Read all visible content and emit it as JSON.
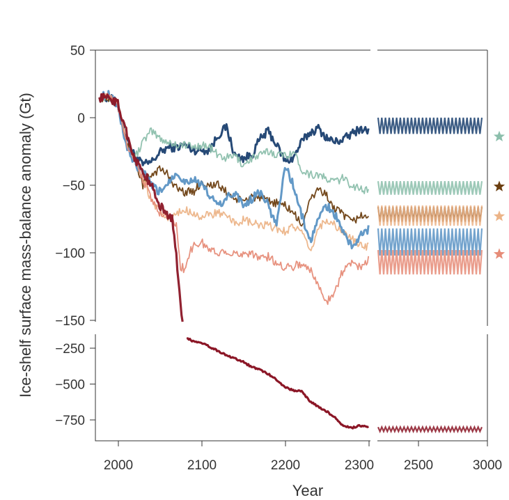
{
  "chart_data": {
    "type": "line",
    "xlabel": "Year",
    "ylabel": "Ice-shelf surface mass-balance anomaly (Gt)",
    "x_ticks_main": [
      2000,
      2100,
      2200,
      2300
    ],
    "x_ticks_extension": [
      2500,
      3000
    ],
    "y_ticks_upper": [
      50,
      0,
      -50,
      -100,
      -150
    ],
    "y_ticks_lower": [
      -250,
      -500,
      -750
    ],
    "xlim_main": [
      1975,
      2305
    ],
    "xlim_extension": [
      2300,
      3000
    ],
    "ylim_upper": [
      -150,
      50
    ],
    "ylim_lower": [
      -850,
      -150
    ],
    "legend": "none",
    "grid": false,
    "series": [
      {
        "color": "#1a3f6f",
        "line_width": 3,
        "x": [
          1978,
          1990,
          2000,
          2010,
          2020,
          2030,
          2040,
          2050,
          2060,
          2070,
          2080,
          2090,
          2100,
          2110,
          2120,
          2130,
          2140,
          2150,
          2160,
          2170,
          2180,
          2190,
          2200,
          2210,
          2220,
          2230,
          2240,
          2250,
          2260,
          2270,
          2280,
          2290,
          2300
        ],
        "y": [
          15,
          15,
          10,
          -15,
          -28,
          -35,
          -33,
          -26,
          -22,
          -22,
          -20,
          -24,
          -24,
          -24,
          -13,
          -7,
          -28,
          -30,
          -28,
          -16,
          -10,
          -20,
          -32,
          -30,
          -18,
          -11,
          -8,
          -15,
          -18,
          -16,
          -12,
          -8,
          -10
        ],
        "extension": {
          "min": -12,
          "max": 0
        }
      },
      {
        "color": "#8cbfac",
        "line_width": 1.8,
        "x": [
          1978,
          1990,
          2000,
          2010,
          2020,
          2030,
          2040,
          2050,
          2060,
          2070,
          2080,
          2090,
          2100,
          2110,
          2120,
          2130,
          2140,
          2150,
          2160,
          2170,
          2180,
          2190,
          2200,
          2210,
          2220,
          2230,
          2240,
          2250,
          2260,
          2270,
          2280,
          2290,
          2300
        ],
        "y": [
          15,
          15,
          10,
          -18,
          -30,
          -18,
          -10,
          -15,
          -18,
          -20,
          -20,
          -22,
          -20,
          -22,
          -28,
          -30,
          -28,
          -35,
          -30,
          -28,
          -25,
          -27,
          -28,
          -25,
          -38,
          -42,
          -42,
          -46,
          -47,
          -45,
          -50,
          -52,
          -55
        ],
        "extension": {
          "min": -57,
          "max": -47
        },
        "star_y": -14
      },
      {
        "color": "#6b3e10",
        "line_width": 1.8,
        "x": [
          1978,
          1990,
          2000,
          2010,
          2020,
          2030,
          2040,
          2050,
          2060,
          2070,
          2080,
          2090,
          2100,
          2110,
          2120,
          2130,
          2140,
          2150,
          2160,
          2170,
          2180,
          2190,
          2200,
          2210,
          2220,
          2230,
          2240,
          2250,
          2260,
          2270,
          2280,
          2290,
          2300
        ],
        "y": [
          15,
          15,
          10,
          -18,
          -30,
          -50,
          -42,
          -38,
          -42,
          -52,
          -55,
          -55,
          -48,
          -50,
          -50,
          -55,
          -60,
          -62,
          -58,
          -60,
          -62,
          -63,
          -65,
          -70,
          -80,
          -62,
          -52,
          -58,
          -68,
          -72,
          -78,
          -72,
          -75
        ],
        "extension": {
          "min": -77,
          "max": -66
        },
        "star_y": -51
      },
      {
        "color": "#ecb488",
        "line_width": 1.8,
        "x": [
          1978,
          1990,
          2000,
          2010,
          2020,
          2030,
          2040,
          2050,
          2060,
          2070,
          2080,
          2090,
          2100,
          2110,
          2120,
          2130,
          2140,
          2150,
          2160,
          2170,
          2180,
          2190,
          2200,
          2210,
          2220,
          2230,
          2240,
          2250,
          2260,
          2270,
          2280,
          2290,
          2300
        ],
        "y": [
          15,
          15,
          10,
          -18,
          -30,
          -45,
          -62,
          -70,
          -75,
          -72,
          -68,
          -70,
          -74,
          -72,
          -70,
          -74,
          -78,
          -76,
          -78,
          -80,
          -80,
          -82,
          -84,
          -80,
          -85,
          -100,
          -82,
          -75,
          -80,
          -85,
          -90,
          -95,
          -95
        ],
        "extension": {
          "min": -80,
          "max": -65
        },
        "star_y": -73
      },
      {
        "color": "#5b93c4",
        "line_width": 3,
        "x": [
          1978,
          1990,
          2000,
          2010,
          2020,
          2030,
          2040,
          2050,
          2060,
          2070,
          2080,
          2090,
          2100,
          2110,
          2120,
          2130,
          2140,
          2150,
          2160,
          2170,
          2180,
          2190,
          2200,
          2210,
          2220,
          2230,
          2240,
          2250,
          2260,
          2270,
          2280,
          2290,
          2300
        ],
        "y": [
          15,
          18,
          8,
          -20,
          -35,
          -40,
          -50,
          -55,
          -48,
          -40,
          -48,
          -45,
          -50,
          -58,
          -65,
          -60,
          -55,
          -65,
          -60,
          -55,
          -65,
          -80,
          -35,
          -50,
          -72,
          -92,
          -75,
          -65,
          -72,
          -85,
          -95,
          -88,
          -82
        ],
        "extension": {
          "min": -102,
          "max": -82
        }
      },
      {
        "color": "#e68c78",
        "line_width": 1.8,
        "x": [
          1978,
          1990,
          2000,
          2010,
          2020,
          2030,
          2040,
          2050,
          2060,
          2070,
          2075,
          2080,
          2085,
          2090,
          2100,
          2110,
          2120,
          2130,
          2140,
          2150,
          2160,
          2170,
          2180,
          2190,
          2200,
          2210,
          2220,
          2230,
          2240,
          2250,
          2260,
          2270,
          2280,
          2290,
          2300
        ],
        "y": [
          15,
          15,
          10,
          -18,
          -30,
          -45,
          -60,
          -70,
          -72,
          -80,
          -110,
          -112,
          -102,
          -95,
          -92,
          -98,
          -100,
          -98,
          -102,
          -100,
          -100,
          -104,
          -103,
          -108,
          -110,
          -110,
          -108,
          -112,
          -125,
          -136,
          -128,
          -112,
          -108,
          -110,
          -105
        ],
        "extension": {
          "min": -116,
          "max": -98
        },
        "star_y": -101
      },
      {
        "color": "#8b1626",
        "line_width": 3.2,
        "x": [
          1978,
          1990,
          2000,
          2010,
          2020,
          2030,
          2040,
          2050,
          2060,
          2065,
          2070,
          2075,
          2080,
          2090,
          2100,
          2110,
          2120,
          2130,
          2140,
          2150,
          2160,
          2170,
          2180,
          2190,
          2200,
          2210,
          2220,
          2230,
          2240,
          2250,
          2260,
          2270,
          2280,
          2290,
          2300
        ],
        "y": [
          15,
          15,
          10,
          -10,
          -30,
          -40,
          -50,
          -65,
          -72,
          -75,
          -100,
          -140,
          -175,
          -200,
          -210,
          -240,
          -270,
          -300,
          -320,
          -345,
          -380,
          -400,
          -430,
          -470,
          -520,
          -545,
          -550,
          -620,
          -660,
          -690,
          -735,
          -795,
          -805,
          -790,
          -800
        ],
        "extension": {
          "min": -830,
          "max": -800
        }
      }
    ]
  }
}
